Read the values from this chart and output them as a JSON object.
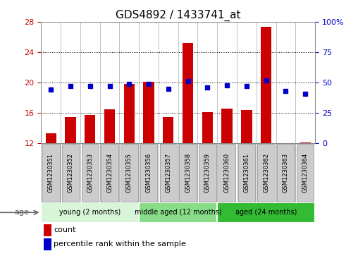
{
  "title": "GDS4892 / 1433741_at",
  "samples": [
    "GSM1230351",
    "GSM1230352",
    "GSM1230353",
    "GSM1230354",
    "GSM1230355",
    "GSM1230356",
    "GSM1230357",
    "GSM1230358",
    "GSM1230359",
    "GSM1230360",
    "GSM1230361",
    "GSM1230362",
    "GSM1230363",
    "GSM1230364"
  ],
  "count_values": [
    13.3,
    15.5,
    15.7,
    16.5,
    19.8,
    20.1,
    15.5,
    25.2,
    16.1,
    16.6,
    16.4,
    27.3,
    12.0,
    12.1
  ],
  "percentile_values": [
    44,
    47,
    47,
    47,
    49,
    49,
    45,
    51,
    46,
    48,
    47,
    52,
    43,
    41
  ],
  "ylim_left": [
    12,
    28
  ],
  "ylim_right": [
    0,
    100
  ],
  "yticks_left": [
    12,
    16,
    20,
    24,
    28
  ],
  "yticks_right": [
    0,
    25,
    50,
    75,
    100
  ],
  "bar_color": "#cc0000",
  "dot_color": "#0000cc",
  "age_groups": [
    {
      "label": "young (2 months)",
      "start": 0,
      "end": 5,
      "color": "#d8f5d8"
    },
    {
      "label": "middle aged (12 months)",
      "start": 5,
      "end": 9,
      "color": "#88dd88"
    },
    {
      "label": "aged (24 months)",
      "start": 9,
      "end": 14,
      "color": "#33bb33"
    }
  ],
  "legend_items": [
    {
      "label": "count",
      "color": "#cc0000"
    },
    {
      "label": "percentile rank within the sample",
      "color": "#0000cc"
    }
  ],
  "bar_bottom": 12,
  "ylabel_left_color": "#cc0000",
  "ylabel_right_color": "#0000cc",
  "sample_box_color": "#cccccc",
  "sample_box_edge": "#999999",
  "title_fontsize": 11,
  "tick_fontsize": 8,
  "sample_fontsize": 6,
  "age_fontsize": 7,
  "legend_fontsize": 8
}
